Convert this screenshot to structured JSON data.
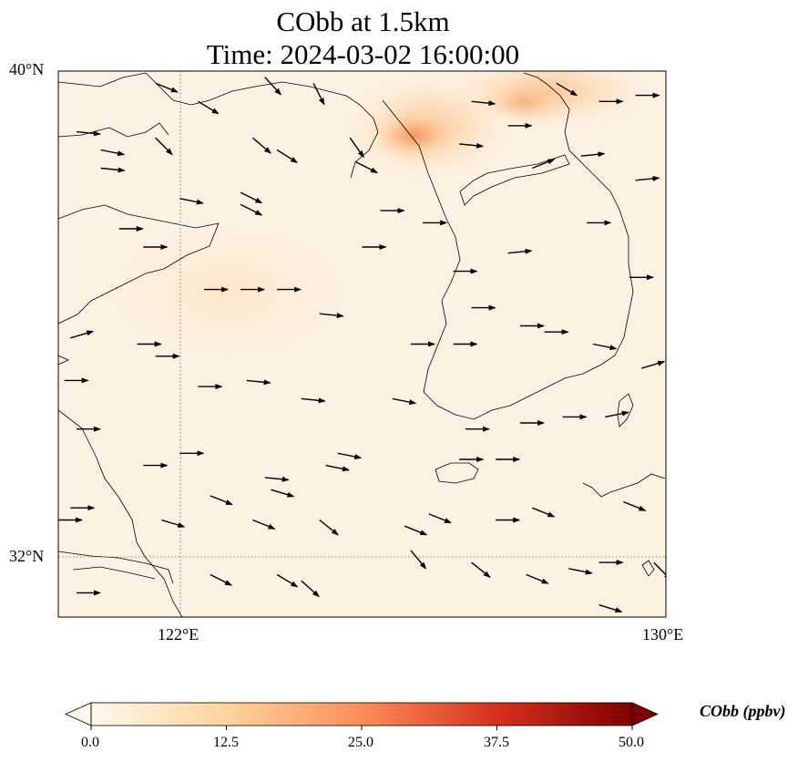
{
  "title": {
    "line1": "CObb at 1.5km",
    "line2": "Time: 2024-03-02 16:00:00"
  },
  "axes": {
    "lat_ticks": [
      "40°N",
      "32°N"
    ],
    "lon_ticks": [
      "122°E",
      "130°E"
    ],
    "lat_range": [
      31,
      40
    ],
    "lon_range": [
      120,
      130
    ],
    "gridlines": "dotted"
  },
  "colorbar": {
    "label": "CObb (ppbv)",
    "ticks": [
      "0.0",
      "12.5",
      "25.0",
      "37.5",
      "50.0"
    ],
    "range": [
      0,
      50
    ],
    "colormap": "OrRd",
    "colors": [
      "#fff7ec",
      "#fdd49e",
      "#fc8d59",
      "#d7301f",
      "#7f0000"
    ],
    "extend": "both"
  },
  "chart_data": {
    "type": "heatmap",
    "title": "CObb at 1.5km",
    "subtitle": "Time: 2024-03-02 16:00:00",
    "variable": "CObb",
    "units": "ppbv",
    "level": "1.5km",
    "hotspots": [
      {
        "lon": 125.8,
        "lat": 39.3,
        "value": 15
      },
      {
        "lon": 127.6,
        "lat": 39.9,
        "value": 9
      },
      {
        "lon": 122.5,
        "lat": 36.0,
        "value": 4
      }
    ],
    "background_value": 1.5,
    "wind_vectors": [
      {
        "lon": 120.3,
        "lat": 39.0,
        "u": 1,
        "v": -0.1
      },
      {
        "lon": 120.7,
        "lat": 38.7,
        "u": 1,
        "v": -0.2
      },
      {
        "lon": 121.6,
        "lat": 39.8,
        "u": 1,
        "v": -0.4
      },
      {
        "lon": 122.3,
        "lat": 39.5,
        "u": 1,
        "v": -0.6
      },
      {
        "lon": 123.4,
        "lat": 39.9,
        "u": 1,
        "v": -1.1
      },
      {
        "lon": 124.2,
        "lat": 39.8,
        "u": 0.5,
        "v": -1
      },
      {
        "lon": 121.6,
        "lat": 38.9,
        "u": 0.6,
        "v": -0.6
      },
      {
        "lon": 123.2,
        "lat": 38.9,
        "u": 0.7,
        "v": -0.6
      },
      {
        "lon": 123.6,
        "lat": 38.7,
        "u": 0.8,
        "v": -0.5
      },
      {
        "lon": 124.8,
        "lat": 38.9,
        "u": 0.5,
        "v": -0.7
      },
      {
        "lon": 124.9,
        "lat": 38.5,
        "u": 1,
        "v": -0.5
      },
      {
        "lon": 126.8,
        "lat": 39.5,
        "u": 1,
        "v": -0.1
      },
      {
        "lon": 126.6,
        "lat": 38.8,
        "u": 1,
        "v": -0.1
      },
      {
        "lon": 127.4,
        "lat": 39.1,
        "u": 1,
        "v": 0
      },
      {
        "lon": 128.2,
        "lat": 39.8,
        "u": 1,
        "v": -0.6
      },
      {
        "lon": 128.9,
        "lat": 39.5,
        "u": 1,
        "v": 0
      },
      {
        "lon": 129.5,
        "lat": 39.6,
        "u": 1,
        "v": 0
      },
      {
        "lon": 127.8,
        "lat": 38.4,
        "u": 1,
        "v": 0.4
      },
      {
        "lon": 128.6,
        "lat": 38.6,
        "u": 1,
        "v": 0.1
      },
      {
        "lon": 129.5,
        "lat": 38.2,
        "u": 1,
        "v": 0.1
      },
      {
        "lon": 120.7,
        "lat": 38.4,
        "u": 1,
        "v": -0.1
      },
      {
        "lon": 123.0,
        "lat": 38.0,
        "u": 1,
        "v": -0.5
      },
      {
        "lon": 123.0,
        "lat": 37.8,
        "u": 1,
        "v": -0.5
      },
      {
        "lon": 122.0,
        "lat": 37.9,
        "u": 1,
        "v": -0.2
      },
      {
        "lon": 121.0,
        "lat": 37.4,
        "u": 1,
        "v": 0
      },
      {
        "lon": 121.4,
        "lat": 37.1,
        "u": 1,
        "v": 0
      },
      {
        "lon": 125.3,
        "lat": 37.7,
        "u": 1,
        "v": 0
      },
      {
        "lon": 126.0,
        "lat": 37.5,
        "u": 1,
        "v": 0
      },
      {
        "lon": 125.0,
        "lat": 37.1,
        "u": 1,
        "v": 0
      },
      {
        "lon": 126.5,
        "lat": 36.7,
        "u": 1,
        "v": 0
      },
      {
        "lon": 127.4,
        "lat": 37.0,
        "u": 1,
        "v": 0.1
      },
      {
        "lon": 128.7,
        "lat": 37.5,
        "u": 1,
        "v": 0
      },
      {
        "lon": 129.4,
        "lat": 36.6,
        "u": 1,
        "v": 0
      },
      {
        "lon": 122.4,
        "lat": 36.4,
        "u": 1,
        "v": 0
      },
      {
        "lon": 123.0,
        "lat": 36.4,
        "u": 1,
        "v": 0
      },
      {
        "lon": 123.6,
        "lat": 36.4,
        "u": 1,
        "v": 0
      },
      {
        "lon": 124.3,
        "lat": 36.0,
        "u": 1,
        "v": -0.1
      },
      {
        "lon": 125.8,
        "lat": 35.5,
        "u": 1,
        "v": 0
      },
      {
        "lon": 126.8,
        "lat": 36.1,
        "u": 1,
        "v": 0
      },
      {
        "lon": 126.5,
        "lat": 35.5,
        "u": 1,
        "v": 0
      },
      {
        "lon": 127.6,
        "lat": 35.8,
        "u": 1,
        "v": 0
      },
      {
        "lon": 128.0,
        "lat": 35.7,
        "u": 1,
        "v": 0
      },
      {
        "lon": 128.8,
        "lat": 35.5,
        "u": 1,
        "v": -0.2
      },
      {
        "lon": 129.6,
        "lat": 35.1,
        "u": 1,
        "v": 0.3
      },
      {
        "lon": 120.2,
        "lat": 35.6,
        "u": 1,
        "v": 0.3
      },
      {
        "lon": 121.3,
        "lat": 35.5,
        "u": 1,
        "v": 0
      },
      {
        "lon": 121.6,
        "lat": 35.3,
        "u": 1,
        "v": 0
      },
      {
        "lon": 122.3,
        "lat": 34.8,
        "u": 1,
        "v": 0
      },
      {
        "lon": 123.1,
        "lat": 34.9,
        "u": 1,
        "v": -0.1
      },
      {
        "lon": 124.0,
        "lat": 34.6,
        "u": 1,
        "v": -0.1
      },
      {
        "lon": 125.5,
        "lat": 34.6,
        "u": 1,
        "v": -0.2
      },
      {
        "lon": 126.7,
        "lat": 34.1,
        "u": 1,
        "v": 0
      },
      {
        "lon": 127.6,
        "lat": 34.2,
        "u": 1,
        "v": 0
      },
      {
        "lon": 128.3,
        "lat": 34.3,
        "u": 1,
        "v": 0
      },
      {
        "lon": 129.0,
        "lat": 34.3,
        "u": 1,
        "v": 0.2
      },
      {
        "lon": 120.1,
        "lat": 34.9,
        "u": 1,
        "v": 0
      },
      {
        "lon": 120.3,
        "lat": 34.1,
        "u": 1,
        "v": 0
      },
      {
        "lon": 121.4,
        "lat": 33.5,
        "u": 1,
        "v": 0
      },
      {
        "lon": 122.0,
        "lat": 33.7,
        "u": 1,
        "v": 0
      },
      {
        "lon": 123.4,
        "lat": 33.3,
        "u": 1,
        "v": -0.1
      },
      {
        "lon": 123.5,
        "lat": 33.1,
        "u": 1,
        "v": -0.3
      },
      {
        "lon": 124.6,
        "lat": 33.7,
        "u": 1,
        "v": -0.2
      },
      {
        "lon": 124.4,
        "lat": 33.5,
        "u": 1,
        "v": -0.2
      },
      {
        "lon": 126.6,
        "lat": 33.6,
        "u": 1,
        "v": 0
      },
      {
        "lon": 127.2,
        "lat": 33.6,
        "u": 1,
        "v": 0
      },
      {
        "lon": 120.0,
        "lat": 32.6,
        "u": 1,
        "v": 0
      },
      {
        "lon": 120.2,
        "lat": 32.8,
        "u": 1,
        "v": 0
      },
      {
        "lon": 121.7,
        "lat": 32.6,
        "u": 1,
        "v": -0.3
      },
      {
        "lon": 122.5,
        "lat": 33.0,
        "u": 1,
        "v": -0.4
      },
      {
        "lon": 123.2,
        "lat": 32.6,
        "u": 1,
        "v": -0.4
      },
      {
        "lon": 124.3,
        "lat": 32.6,
        "u": 1,
        "v": -0.8
      },
      {
        "lon": 125.7,
        "lat": 32.5,
        "u": 1,
        "v": -0.4
      },
      {
        "lon": 126.1,
        "lat": 32.7,
        "u": 1,
        "v": -0.4
      },
      {
        "lon": 127.2,
        "lat": 32.6,
        "u": 1,
        "v": 0
      },
      {
        "lon": 127.8,
        "lat": 32.8,
        "u": 1,
        "v": -0.4
      },
      {
        "lon": 129.3,
        "lat": 32.9,
        "u": 1,
        "v": -0.4
      },
      {
        "lon": 122.5,
        "lat": 31.7,
        "u": 1,
        "v": -0.5
      },
      {
        "lon": 123.6,
        "lat": 31.7,
        "u": 1,
        "v": -0.6
      },
      {
        "lon": 124.0,
        "lat": 31.6,
        "u": 1,
        "v": -0.9
      },
      {
        "lon": 125.8,
        "lat": 32.1,
        "u": 1,
        "v": -1.2
      },
      {
        "lon": 126.8,
        "lat": 31.9,
        "u": 1,
        "v": -0.8
      },
      {
        "lon": 127.7,
        "lat": 31.7,
        "u": 1,
        "v": -0.4
      },
      {
        "lon": 128.4,
        "lat": 31.8,
        "u": 1,
        "v": -0.2
      },
      {
        "lon": 128.9,
        "lat": 31.9,
        "u": 1,
        "v": 0
      },
      {
        "lon": 129.8,
        "lat": 31.9,
        "u": 1,
        "v": -1
      },
      {
        "lon": 120.3,
        "lat": 31.4,
        "u": 1,
        "v": 0
      },
      {
        "lon": 122.2,
        "lat": 31.0,
        "u": 1,
        "v": -0.3
      },
      {
        "lon": 124.6,
        "lat": 31.0,
        "u": 1,
        "v": -1.2
      },
      {
        "lon": 128.9,
        "lat": 31.2,
        "u": 1,
        "v": -0.3
      }
    ]
  }
}
